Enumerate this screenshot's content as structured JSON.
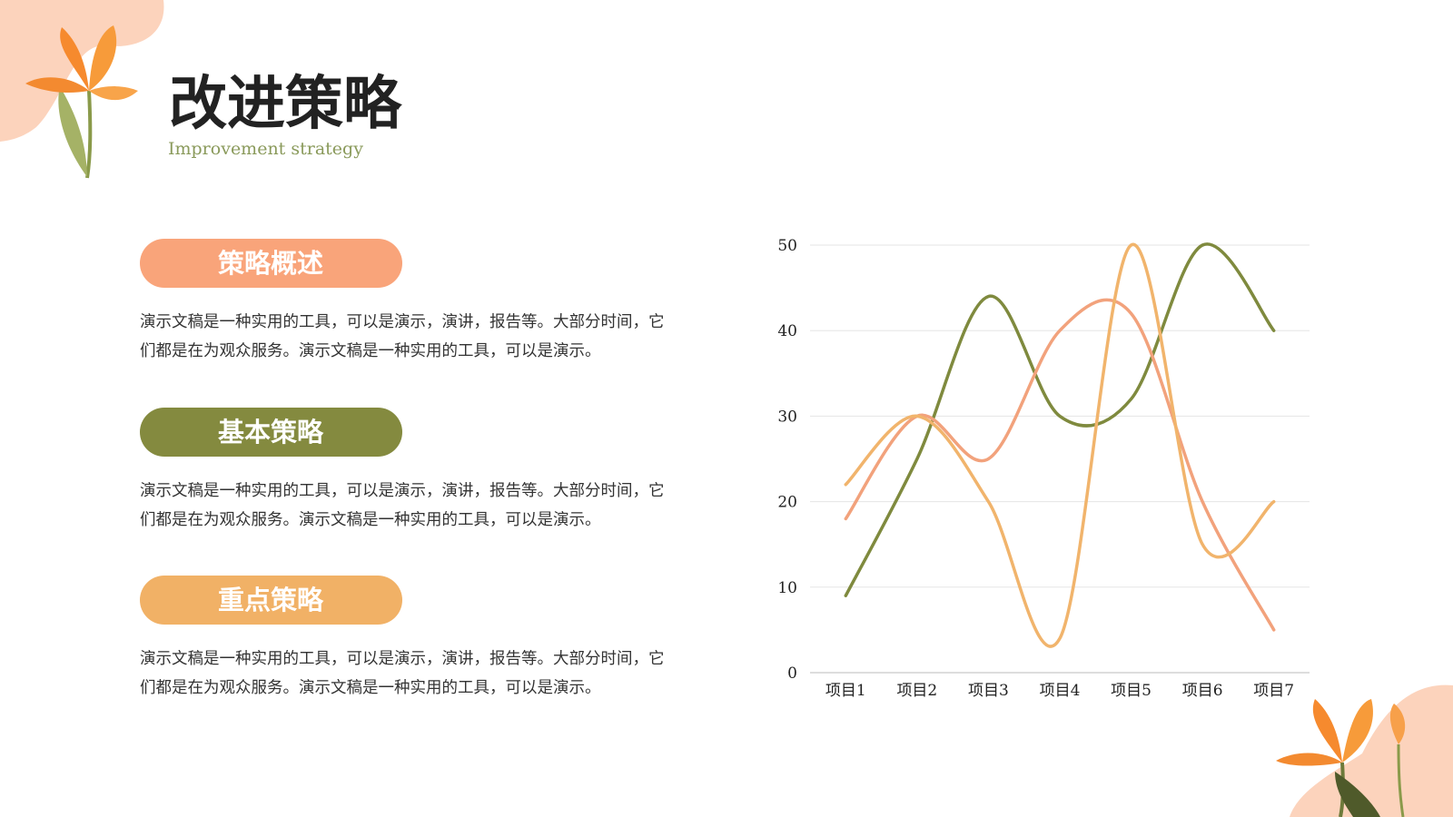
{
  "header": {
    "title": "改进策略",
    "subtitle": "Improvement strategy"
  },
  "sections": [
    {
      "heading": "策略概述",
      "body": [
        "演示文稿是一种实用的工具，可以是演示，演讲，报告等。大部分时间，它",
        "们都是在为观众服务。演示文稿是一种实用的工具，可以是演示。"
      ]
    },
    {
      "heading": "基本策略",
      "body": [
        "演示文稿是一种实用的工具，可以是演示，演讲，报告等。大部分时间，它",
        "们都是在为观众服务。演示文稿是一种实用的工具，可以是演示。"
      ]
    },
    {
      "heading": "重点策略",
      "body": [
        "演示文稿是一种实用的工具，可以是演示，演讲，报告等。大部分时间，它",
        "们都是在为观众服务。演示文稿是一种实用的工具，可以是演示。"
      ]
    }
  ],
  "chart_data": {
    "type": "line",
    "categories": [
      "项目1",
      "项目2",
      "项目3",
      "项目4",
      "项目5",
      "项目6",
      "项目7"
    ],
    "series": [
      {
        "color": "#7f8a3e",
        "values": [
          9,
          25,
          44,
          30,
          32,
          50,
          40
        ]
      },
      {
        "color": "#f2a27c",
        "values": [
          18,
          30,
          25,
          40,
          42,
          20,
          5
        ]
      },
      {
        "color": "#f1b46c",
        "values": [
          22,
          30,
          20,
          4,
          50,
          15,
          20
        ]
      }
    ],
    "ylim": [
      0,
      50
    ],
    "yticks": [
      0,
      10,
      20,
      30,
      40,
      50
    ],
    "grid": true,
    "smooth": true
  }
}
